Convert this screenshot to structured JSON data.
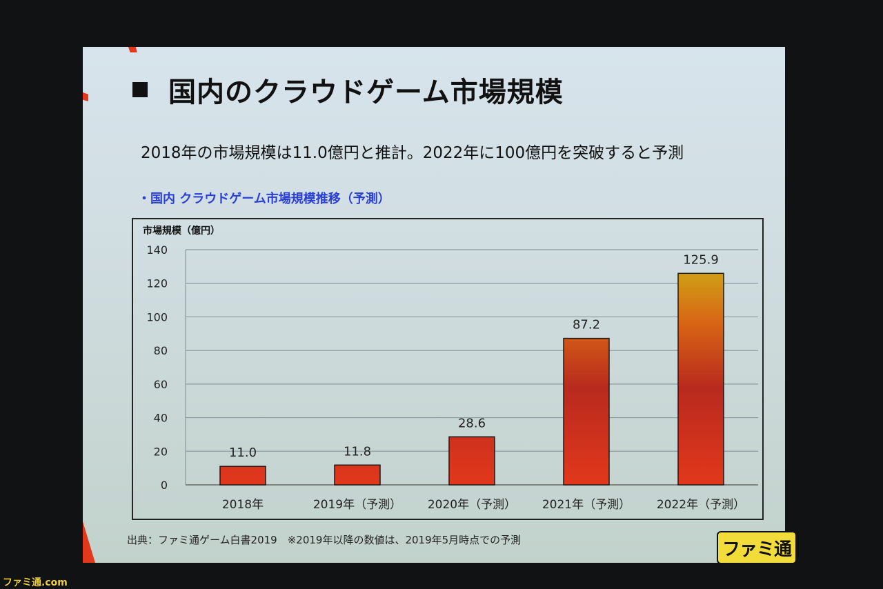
{
  "slide": {
    "title": "国内のクラウドゲーム市場規模",
    "subtitle": "2018年の市場規模は11.0億円と推計。2022年に100億円を突破すると予測",
    "source": "出典：ファミ通ゲーム白書2019　※2019年以降の数値は、2019年5月時点での予測",
    "logo": "ファミ通",
    "watermark": "ファミ通.com"
  },
  "chart_data": {
    "type": "bar",
    "title": "・国内 クラウドゲーム市場規模推移（予測）",
    "ylabel": "市場規模（億円）",
    "xlabel": "",
    "categories": [
      "2018年",
      "2019年（予測）",
      "2020年（予測）",
      "2021年（予測）",
      "2022年（予測）"
    ],
    "values": [
      11.0,
      11.8,
      28.6,
      87.2,
      125.9
    ],
    "value_labels": [
      "11.0",
      "11.8",
      "28.6",
      "87.2",
      "125.9"
    ],
    "ylim": [
      0,
      140
    ],
    "yticks": [
      0,
      20,
      40,
      60,
      80,
      100,
      120,
      140
    ],
    "grid": true,
    "colors": {
      "bar_base": "#e2381c",
      "bar_mid": "#b82a1e",
      "bar_top": "#cfa417"
    }
  }
}
